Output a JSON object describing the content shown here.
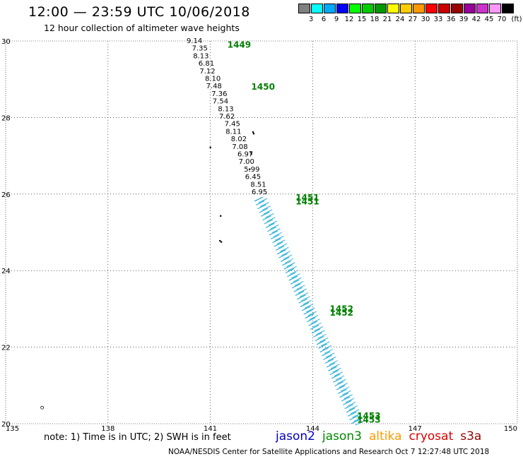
{
  "header": {
    "title": "12:00 — 23:59 UTC 10/06/2018",
    "subtitle": "12 hour collection of altimeter wave heights"
  },
  "legend": {
    "unit": "(ft)",
    "colors": [
      "#808080",
      "#00ffff",
      "#00aaff",
      "#0000ff",
      "#00ff00",
      "#00cc00",
      "#009900",
      "#ffff00",
      "#ffcc00",
      "#ff9900",
      "#ff0000",
      "#cc0000",
      "#990000",
      "#990099",
      "#cc33cc",
      "#ff99ff",
      "#000000"
    ],
    "labels": [
      "3",
      "6",
      "9",
      "12",
      "15",
      "18",
      "21",
      "24",
      "27",
      "30",
      "33",
      "36",
      "39",
      "42",
      "45",
      "70"
    ]
  },
  "map": {
    "lon_range": [
      135,
      150
    ],
    "lat_range": [
      20,
      30
    ],
    "lon_ticks": [
      "135",
      "138",
      "141",
      "144",
      "147",
      "150"
    ],
    "lat_ticks": [
      "30",
      "28",
      "26",
      "24",
      "22",
      "20"
    ],
    "grid": "dotted",
    "pass_color": "#00a0d0",
    "time_color": "#008000",
    "track_labeled": [
      "9.14",
      "7.35",
      "8.13",
      "6.81",
      "7.12",
      "8.10",
      "7.48",
      "7.36",
      "7.54",
      "8.13",
      "7.62",
      "7.45",
      "8.11",
      "8.02",
      "7.08",
      "6.97",
      "7.00",
      "5.99",
      "6.45",
      "8.51",
      "6.95"
    ],
    "time_labels": [
      {
        "text": "1449",
        "lon": 141.5,
        "lat": 29.9
      },
      {
        "text": "1450",
        "lon": 142.2,
        "lat": 28.8
      },
      {
        "text": "1451",
        "lon": 143.5,
        "lat": 25.9
      },
      {
        "text": "1451",
        "lon": 143.5,
        "lat": 25.8
      },
      {
        "text": "1452",
        "lon": 144.5,
        "lat": 23.0
      },
      {
        "text": "1452",
        "lon": 144.5,
        "lat": 22.9
      },
      {
        "text": "1453",
        "lon": 145.3,
        "lat": 20.2
      },
      {
        "text": "1453",
        "lon": 145.3,
        "lat": 20.1
      }
    ],
    "islands": [
      {
        "lon": 142.25,
        "lat": 27.62
      },
      {
        "lon": 142.27,
        "lat": 27.58
      },
      {
        "lon": 142.18,
        "lat": 27.1
      },
      {
        "lon": 142.2,
        "lat": 27.05
      },
      {
        "lon": 142.15,
        "lat": 26.65
      },
      {
        "lon": 141.0,
        "lat": 27.22
      },
      {
        "lon": 141.3,
        "lat": 25.43
      },
      {
        "lon": 141.32,
        "lat": 24.75
      },
      {
        "lon": 141.28,
        "lat": 24.78
      },
      {
        "lon": 136.07,
        "lat": 20.42
      }
    ]
  },
  "footer": {
    "note": "note: 1) Time is in UTC; 2) SWH is in feet",
    "satellites": [
      {
        "name": "jason2",
        "color": "#0000cc"
      },
      {
        "name": "jason3",
        "color": "#008800"
      },
      {
        "name": "altika",
        "color": "#ff9900"
      },
      {
        "name": "cryosat",
        "color": "#dd0000"
      },
      {
        "name": "s3a",
        "color": "#990000"
      }
    ],
    "credit": "NOAA/NESDIS Center for Satellite Applications and Research    Oct  7 12:27:48 UTC 2018"
  }
}
